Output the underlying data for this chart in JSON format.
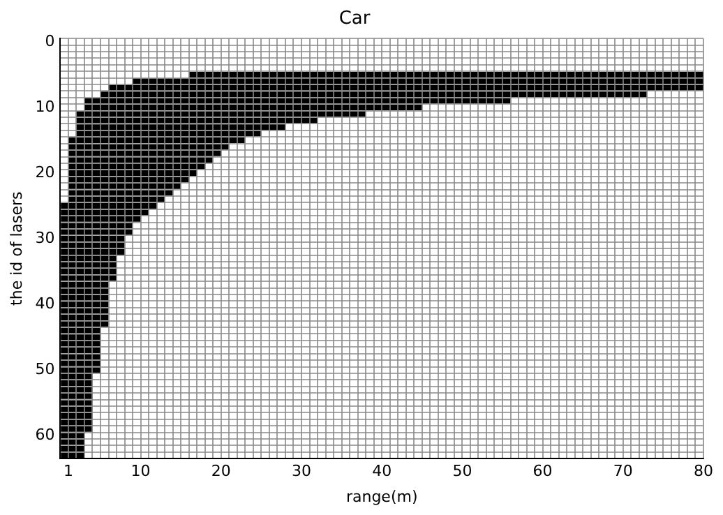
{
  "chart_data": {
    "type": "bar",
    "orientation": "horizontal",
    "title": "Car",
    "xlabel": "range(m)",
    "ylabel": "the id of lasers",
    "categories": [
      "0",
      null,
      null,
      null,
      null,
      null,
      null,
      null,
      null,
      null,
      "10",
      null,
      null,
      null,
      null,
      null,
      null,
      null,
      null,
      null,
      "20",
      null,
      null,
      null,
      null,
      null,
      null,
      null,
      null,
      null,
      "30",
      null,
      null,
      null,
      null,
      null,
      null,
      null,
      null,
      null,
      "40",
      null,
      null,
      null,
      null,
      null,
      null,
      null,
      null,
      null,
      "50",
      null,
      null,
      null,
      null,
      null,
      null,
      null,
      null,
      null,
      "60",
      null,
      null,
      null
    ],
    "base": [
      null,
      null,
      null,
      null,
      null,
      16,
      9,
      6,
      5,
      3,
      3,
      2,
      2,
      2,
      2,
      1,
      1,
      1,
      1,
      1,
      1,
      1,
      1,
      1,
      1,
      0,
      0,
      0,
      0,
      0,
      0,
      0,
      0,
      0,
      0,
      0,
      0,
      0,
      0,
      0,
      0,
      0,
      0,
      0,
      0,
      0,
      0,
      0,
      0,
      0,
      0,
      0,
      0,
      0,
      0,
      0,
      0,
      0,
      0,
      0,
      0,
      0,
      0,
      0
    ],
    "values": [
      null,
      null,
      null,
      null,
      null,
      64,
      71,
      74,
      68,
      53,
      42,
      36,
      30,
      26,
      23,
      22,
      20,
      19,
      18,
      17,
      16,
      15,
      14,
      13,
      12,
      12,
      11,
      10,
      9,
      9,
      8,
      8,
      8,
      7,
      7,
      7,
      7,
      6,
      6,
      6,
      6,
      6,
      6,
      6,
      5,
      5,
      5,
      5,
      5,
      5,
      5,
      4,
      4,
      4,
      4,
      4,
      4,
      4,
      4,
      4,
      3,
      3,
      3,
      3
    ],
    "color": "#000000",
    "xlim": [
      0,
      80
    ],
    "xticks": [
      {
        "value": 0,
        "label": null
      },
      1,
      {
        "value": 2,
        "label": null
      },
      {
        "value": 3,
        "label": null
      },
      {
        "value": 4,
        "label": null
      },
      {
        "value": 5,
        "label": null
      },
      {
        "value": 6,
        "label": null
      },
      {
        "value": 7,
        "label": null
      },
      {
        "value": 8,
        "label": null
      },
      {
        "value": 9,
        "label": null
      },
      10,
      {
        "value": 11,
        "label": null
      },
      {
        "value": 12,
        "label": null
      },
      {
        "value": 13,
        "label": null
      },
      {
        "value": 14,
        "label": null
      },
      {
        "value": 15,
        "label": null
      },
      {
        "value": 16,
        "label": null
      },
      {
        "value": 17,
        "label": null
      },
      {
        "value": 18,
        "label": null
      },
      {
        "value": 19,
        "label": null
      },
      20,
      {
        "value": 21,
        "label": null
      },
      {
        "value": 22,
        "label": null
      },
      {
        "value": 23,
        "label": null
      },
      {
        "value": 24,
        "label": null
      },
      {
        "value": 25,
        "label": null
      },
      {
        "value": 26,
        "label": null
      },
      {
        "value": 27,
        "label": null
      },
      {
        "value": 28,
        "label": null
      },
      {
        "value": 29,
        "label": null
      },
      30,
      {
        "value": 31,
        "label": null
      },
      {
        "value": 32,
        "label": null
      },
      {
        "value": 33,
        "label": null
      },
      {
        "value": 34,
        "label": null
      },
      {
        "value": 35,
        "label": null
      },
      {
        "value": 36,
        "label": null
      },
      {
        "value": 37,
        "label": null
      },
      {
        "value": 38,
        "label": null
      },
      {
        "value": 39,
        "label": null
      },
      40,
      {
        "value": 41,
        "label": null
      },
      {
        "value": 42,
        "label": null
      },
      {
        "value": 43,
        "label": null
      },
      {
        "value": 44,
        "label": null
      },
      {
        "value": 45,
        "label": null
      },
      {
        "value": 46,
        "label": null
      },
      {
        "value": 47,
        "label": null
      },
      {
        "value": 48,
        "label": null
      },
      {
        "value": 49,
        "label": null
      },
      50,
      {
        "value": 51,
        "label": null
      },
      {
        "value": 52,
        "label": null
      },
      {
        "value": 53,
        "label": null
      },
      {
        "value": 54,
        "label": null
      },
      {
        "value": 55,
        "label": null
      },
      {
        "value": 56,
        "label": null
      },
      {
        "value": 57,
        "label": null
      },
      {
        "value": 58,
        "label": null
      },
      {
        "value": 59,
        "label": null
      },
      60,
      {
        "value": 61,
        "label": null
      },
      {
        "value": 62,
        "label": null
      },
      {
        "value": 63,
        "label": null
      },
      {
        "value": 64,
        "label": null
      },
      {
        "value": 65,
        "label": null
      },
      {
        "value": 66,
        "label": null
      },
      {
        "value": 67,
        "label": null
      },
      {
        "value": 68,
        "label": null
      },
      {
        "value": 69,
        "label": null
      },
      70,
      {
        "value": 71,
        "label": null
      },
      {
        "value": 72,
        "label": null
      },
      {
        "value": 73,
        "label": null
      },
      {
        "value": 74,
        "label": null
      },
      {
        "value": 75,
        "label": null
      },
      {
        "value": 76,
        "label": null
      },
      {
        "value": 77,
        "label": null
      },
      {
        "value": 78,
        "label": null
      },
      {
        "value": 79,
        "label": null
      },
      80
    ],
    "grid": true,
    "legend": false
  }
}
